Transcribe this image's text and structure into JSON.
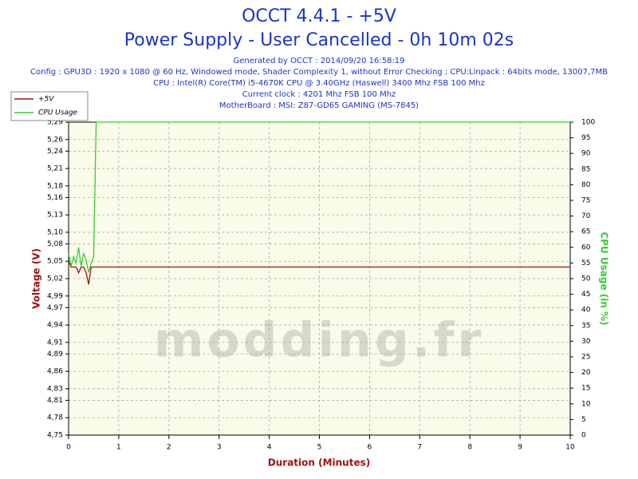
{
  "chart_data": {
    "type": "line",
    "title": "OCCT 4.4.1 - +5V",
    "subtitle": "Power Supply - User Cancelled - 0h 10m 02s",
    "info": [
      "Generated by OCCT : 2014/09/20 16:58:19",
      "Config : GPU3D : 1920 x 1080 @ 60 Hz, Windowed mode, Shader Complexity 1, without Error Checking ; CPU:Linpack : 64bits mode, 13007,7MB",
      "CPU : Intel(R) Core(TM) i5-4670K CPU @ 3.40GHz (Haswell) 3400 Mhz FSB 100 Mhz",
      "Current clock : 4201 Mhz FSB 100 Mhz",
      "MotherBoard : MSI: Z87-GD65 GAMING (MS-7845)"
    ],
    "watermark": "modding.fr",
    "xlabel": "Duration (Minutes)",
    "ylabel": "Voltage (V)",
    "y2label": "CPU Usage (in %)",
    "x": [
      0,
      0.05,
      0.1,
      0.15,
      0.2,
      0.25,
      0.3,
      0.35,
      0.4,
      0.45,
      0.5,
      0.55,
      0.6,
      1,
      2,
      3,
      4,
      5,
      6,
      7,
      8,
      9,
      10
    ],
    "series": [
      {
        "name": "+5V",
        "color": "#a01010",
        "axis": "y",
        "values": [
          5.05,
          5.04,
          5.04,
          5.04,
          5.03,
          5.04,
          5.04,
          5.03,
          5.01,
          5.04,
          5.04,
          5.04,
          5.04,
          5.04,
          5.04,
          5.04,
          5.04,
          5.04,
          5.04,
          5.04,
          5.04,
          5.04,
          5.04
        ]
      },
      {
        "name": "CPU Usage",
        "color": "#33cc33",
        "axis": "y2",
        "values": [
          58,
          54,
          57,
          55,
          60,
          54,
          58,
          56,
          52,
          55,
          57,
          100,
          100,
          100,
          100,
          100,
          100,
          100,
          100,
          100,
          100,
          100,
          100
        ]
      }
    ],
    "xlim": [
      0,
      10
    ],
    "xticks": [
      0,
      1,
      2,
      3,
      4,
      5,
      6,
      7,
      8,
      9,
      10
    ],
    "ylim": [
      4.75,
      5.29
    ],
    "yticks": [
      {
        "value": 4.75,
        "label": "4,75"
      },
      {
        "value": 4.78,
        "label": "4,78"
      },
      {
        "value": 4.81,
        "label": "4,81"
      },
      {
        "value": 4.83,
        "label": "4,83"
      },
      {
        "value": 4.86,
        "label": "4,86"
      },
      {
        "value": 4.89,
        "label": "4,89"
      },
      {
        "value": 4.91,
        "label": "4,91"
      },
      {
        "value": 4.94,
        "label": "4,94"
      },
      {
        "value": 4.97,
        "label": "4,97"
      },
      {
        "value": 4.99,
        "label": "4,99"
      },
      {
        "value": 5.02,
        "label": "5,02"
      },
      {
        "value": 5.05,
        "label": "5,05"
      },
      {
        "value": 5.08,
        "label": "5,08"
      },
      {
        "value": 5.1,
        "label": "5,10"
      },
      {
        "value": 5.13,
        "label": "5,13"
      },
      {
        "value": 5.16,
        "label": "5,16"
      },
      {
        "value": 5.18,
        "label": "5,18"
      },
      {
        "value": 5.21,
        "label": "5,21"
      },
      {
        "value": 5.24,
        "label": "5,24"
      },
      {
        "value": 5.26,
        "label": "5,26"
      },
      {
        "value": 5.29,
        "label": "5,29"
      }
    ],
    "y2lim": [
      0,
      100
    ],
    "y2ticks": [
      0,
      5,
      10,
      15,
      20,
      25,
      30,
      35,
      40,
      45,
      50,
      55,
      60,
      65,
      70,
      75,
      80,
      85,
      90,
      95,
      100
    ],
    "grid": true
  }
}
